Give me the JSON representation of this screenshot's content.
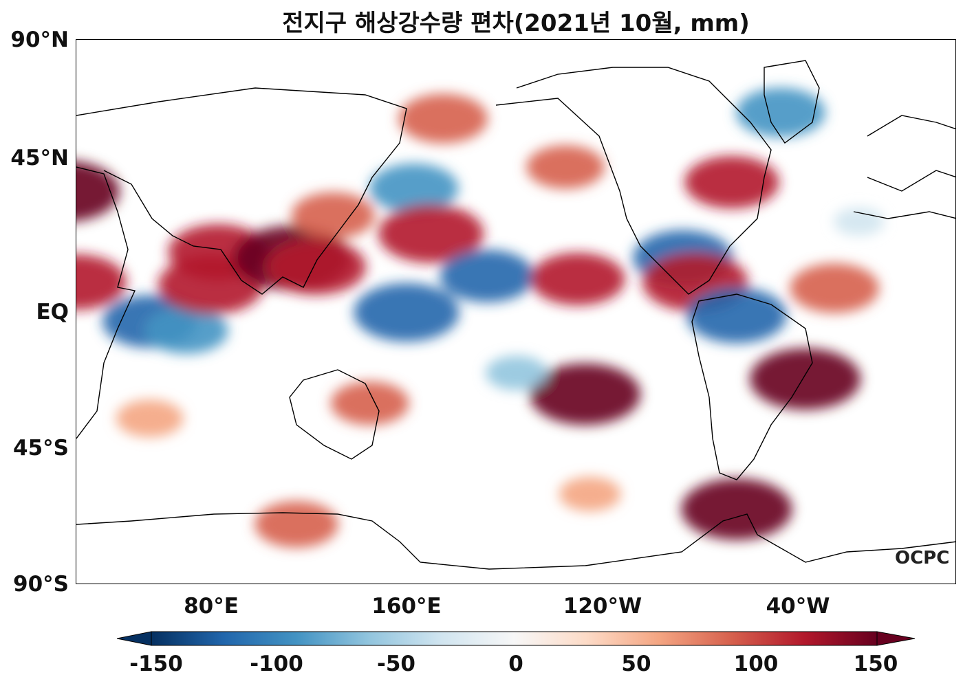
{
  "title": "전지구 해상강수량 편차(2021년 10월, mm)",
  "watermark": "OCPC",
  "lat_labels": [
    "90°N",
    "45°N",
    "EQ",
    "45°S",
    "90°S"
  ],
  "lon_labels": [
    "80°E",
    "160°E",
    "120°W",
    "40°W"
  ],
  "colorbar": {
    "min": -150,
    "max": 150,
    "ticks": [
      "-150",
      "-100",
      "-50",
      "0",
      "50",
      "100",
      "150"
    ],
    "colors": [
      "#053061",
      "#2166ac",
      "#4393c3",
      "#92c5de",
      "#d1e5f0",
      "#f7f7f7",
      "#fddbc7",
      "#f4a582",
      "#d6604d",
      "#b2182b",
      "#67001f"
    ]
  },
  "chart_data": {
    "type": "heatmap",
    "title": "전지구 해상강수량 편차(2021년 10월, mm)",
    "variable": "precipitation anomaly (mm)",
    "xlim": [
      30,
      390
    ],
    "ylim": [
      -90,
      90
    ],
    "anomalies": [
      {
        "lon": 60,
        "lat": -3,
        "value": -110
      },
      {
        "lon": 75,
        "lat": -6,
        "value": -90
      },
      {
        "lon": 85,
        "lat": 9,
        "value": 130
      },
      {
        "lon": 88,
        "lat": 20,
        "value": 120
      },
      {
        "lon": 118,
        "lat": 18,
        "value": 150
      },
      {
        "lon": 128,
        "lat": 15,
        "value": 120
      },
      {
        "lon": 135,
        "lat": 32,
        "value": 90
      },
      {
        "lon": 165,
        "lat": 0,
        "value": -130
      },
      {
        "lon": 168,
        "lat": 41,
        "value": -100
      },
      {
        "lon": 175,
        "lat": 26,
        "value": 130
      },
      {
        "lon": 198,
        "lat": 12,
        "value": -110
      },
      {
        "lon": 235,
        "lat": 11,
        "value": 110
      },
      {
        "lon": 238,
        "lat": -27,
        "value": 140
      },
      {
        "lon": 230,
        "lat": 48,
        "value": 80
      },
      {
        "lon": 180,
        "lat": 64,
        "value": 100
      },
      {
        "lon": 278,
        "lat": 18,
        "value": -120
      },
      {
        "lon": 283,
        "lat": 10,
        "value": 130
      },
      {
        "lon": 298,
        "lat": 43,
        "value": 110
      },
      {
        "lon": 318,
        "lat": 66,
        "value": -100
      },
      {
        "lon": 328,
        "lat": -22,
        "value": 140
      },
      {
        "lon": 340,
        "lat": 8,
        "value": 100
      },
      {
        "lon": 30,
        "lat": 10,
        "value": 120
      },
      {
        "lon": 25,
        "lat": 40,
        "value": 140
      },
      {
        "lon": 300,
        "lat": -1,
        "value": -120
      },
      {
        "lon": 120,
        "lat": -70,
        "value": 90
      },
      {
        "lon": 300,
        "lat": -65,
        "value": 140
      },
      {
        "lon": 210,
        "lat": -20,
        "value": -50
      },
      {
        "lon": 150,
        "lat": -30,
        "value": 80
      },
      {
        "lon": 60,
        "lat": -35,
        "value": 60
      },
      {
        "lon": 240,
        "lat": -60,
        "value": 50
      },
      {
        "lon": 350,
        "lat": 30,
        "value": -30
      }
    ]
  }
}
